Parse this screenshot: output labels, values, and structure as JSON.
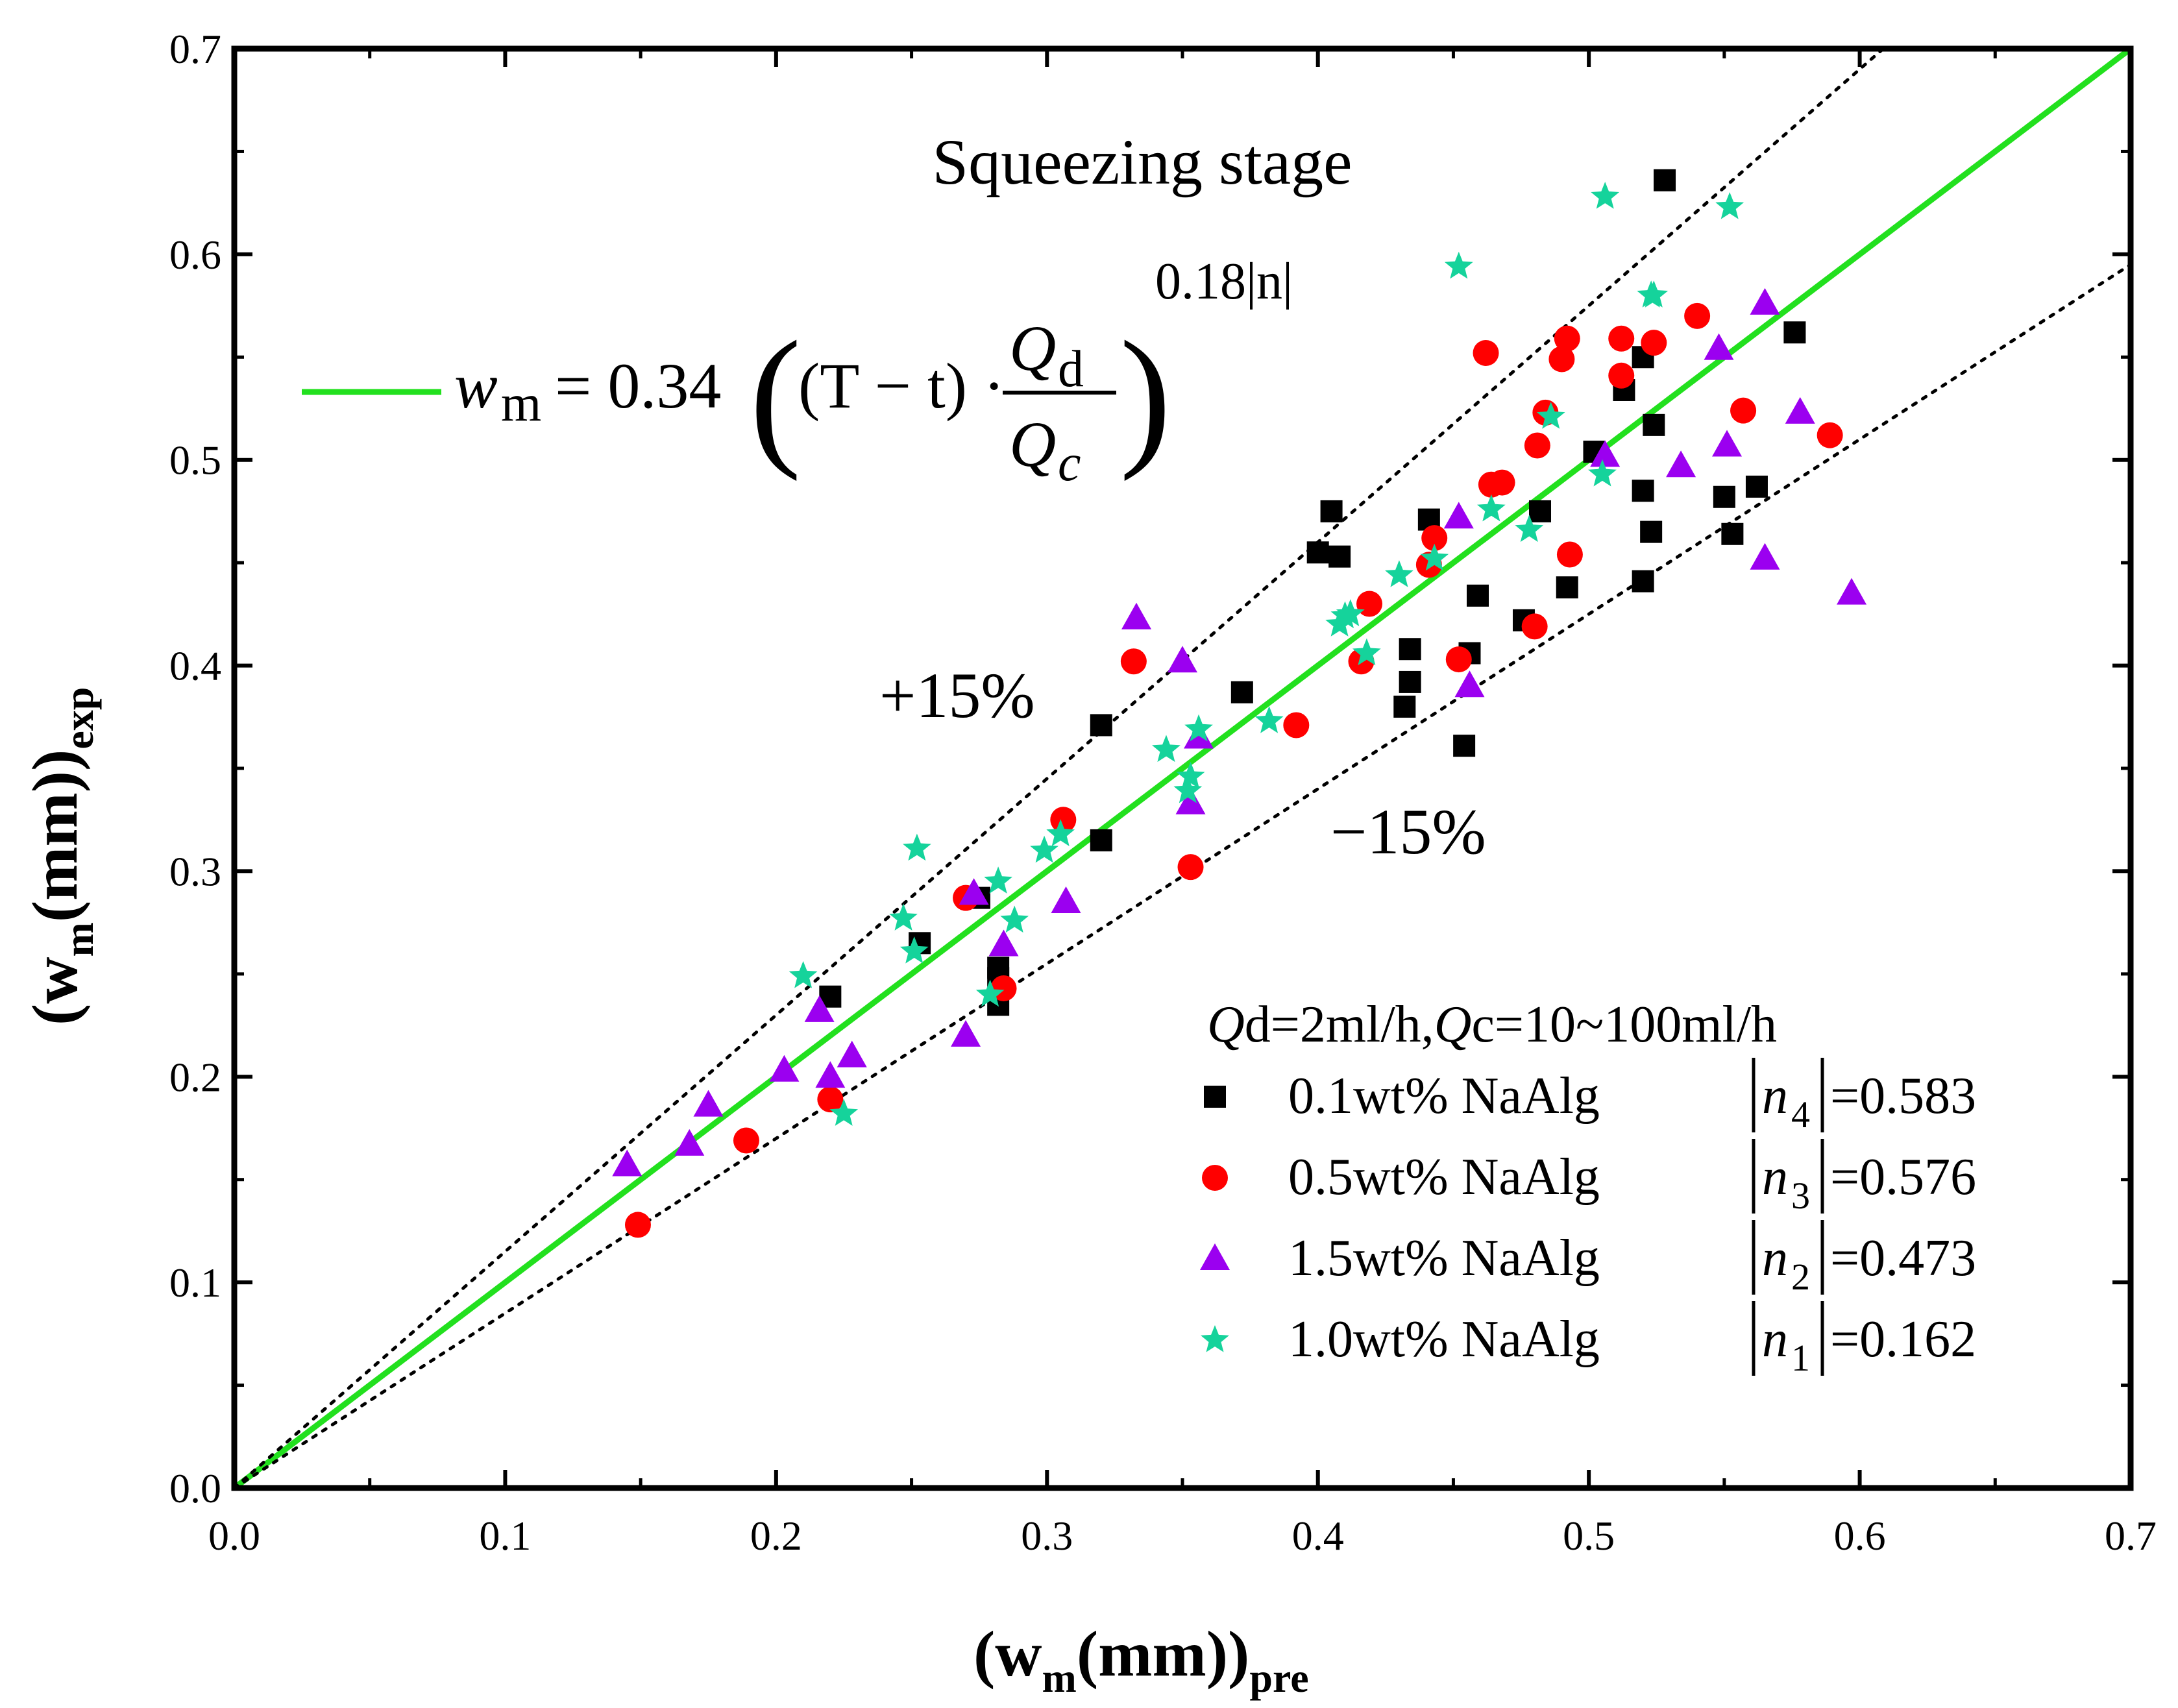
{
  "chart_data": {
    "type": "scatter",
    "title": "Squeezing  stage",
    "xlabel": {
      "main": "(w",
      "sub": "m",
      "rest": "(mm))",
      "subscript": "pre"
    },
    "ylabel": {
      "main": "(w",
      "sub": "m",
      "rest": "(mm))",
      "subscript": "exp"
    },
    "xlim": [
      0,
      0.7
    ],
    "ylim": [
      0,
      0.7
    ],
    "x_ticks": [
      "0.0",
      "0.1",
      "0.2",
      "0.3",
      "0.4",
      "0.5",
      "0.6",
      "0.7"
    ],
    "y_ticks": [
      "0.0",
      "0.1",
      "0.2",
      "0.3",
      "0.4",
      "0.5",
      "0.6",
      "0.7"
    ],
    "grid": false,
    "reference_lines": [
      {
        "label": "",
        "slope": 1.0,
        "style": "solid",
        "color": "#22e01e"
      },
      {
        "label": "+15%",
        "slope": 1.15,
        "style": "dotted",
        "color": "#000000"
      },
      {
        "label": "−15%",
        "slope": 0.85,
        "style": "dotted",
        "color": "#000000"
      }
    ],
    "formula": {
      "lhs": "w",
      "lhs_sub": "m",
      "equals": "= 0.34",
      "lparen": "(",
      "term": "(T − t) ·",
      "numerator": "Q",
      "numerator_sub": "d",
      "denominator": "Q",
      "denominator_sub": "c",
      "rparen": ")",
      "exponent": "0.18|n|"
    },
    "legend": {
      "placement": "bottom-right",
      "header": {
        "q1": "Q",
        "q1_sub": "d",
        "mid": "=2ml/h,",
        "q2": "Q",
        "q2_sub": "c",
        "end": "=10~100ml/h"
      },
      "entries": [
        {
          "label": "0.1wt% NaAlg",
          "n": "n",
          "n_sub": "4",
          "value": "=0.583"
        },
        {
          "label": "0.5wt% NaAlg",
          "n": "n",
          "n_sub": "3",
          "value": "=0.576"
        },
        {
          "label": "1.5wt% NaAlg",
          "n": "n",
          "n_sub": "2",
          "value": "=0.473"
        },
        {
          "label": "1.0wt% NaAlg",
          "n": "n",
          "n_sub": "1",
          "value": "=0.162"
        }
      ]
    },
    "series": [
      {
        "name": "0.1wt% NaAlg",
        "marker": "square",
        "color": "#000000",
        "x": [
          0.22,
          0.253,
          0.275,
          0.282,
          0.282,
          0.282,
          0.32,
          0.32,
          0.372,
          0.4,
          0.405,
          0.408,
          0.432,
          0.434,
          0.434,
          0.441,
          0.454,
          0.456,
          0.459,
          0.476,
          0.482,
          0.492,
          0.502,
          0.52,
          0.52,
          0.52,
          0.523,
          0.524,
          0.513,
          0.528,
          0.55,
          0.553,
          0.562,
          0.576
        ],
        "y": [
          0.239,
          0.265,
          0.287,
          0.253,
          0.248,
          0.235,
          0.371,
          0.315,
          0.387,
          0.455,
          0.475,
          0.453,
          0.38,
          0.392,
          0.408,
          0.471,
          0.361,
          0.406,
          0.434,
          0.422,
          0.475,
          0.438,
          0.504,
          0.441,
          0.485,
          0.55,
          0.465,
          0.517,
          0.534,
          0.636,
          0.482,
          0.464,
          0.487,
          0.562
        ]
      },
      {
        "name": "0.5wt% NaAlg",
        "marker": "circle",
        "color": "#ff0000",
        "x": [
          0.149,
          0.189,
          0.22,
          0.27,
          0.284,
          0.306,
          0.332,
          0.353,
          0.392,
          0.416,
          0.419,
          0.441,
          0.443,
          0.452,
          0.462,
          0.464,
          0.468,
          0.48,
          0.481,
          0.484,
          0.49,
          0.492,
          0.493,
          0.512,
          0.512,
          0.524,
          0.54,
          0.557,
          0.589
        ],
        "y": [
          0.128,
          0.169,
          0.189,
          0.287,
          0.243,
          0.325,
          0.402,
          0.302,
          0.371,
          0.402,
          0.43,
          0.449,
          0.462,
          0.403,
          0.552,
          0.488,
          0.489,
          0.419,
          0.507,
          0.523,
          0.549,
          0.559,
          0.454,
          0.559,
          0.541,
          0.557,
          0.57,
          0.524,
          0.512
        ]
      },
      {
        "name": "1.5wt% NaAlg",
        "marker": "triangle",
        "color": "#9b00f0",
        "x": [
          0.145,
          0.168,
          0.175,
          0.203,
          0.216,
          0.22,
          0.228,
          0.27,
          0.273,
          0.284,
          0.307,
          0.333,
          0.35,
          0.353,
          0.356,
          0.452,
          0.456,
          0.506,
          0.534,
          0.548,
          0.551,
          0.565,
          0.565,
          0.578,
          0.597
        ],
        "y": [
          0.157,
          0.167,
          0.186,
          0.203,
          0.232,
          0.2,
          0.21,
          0.22,
          0.289,
          0.264,
          0.285,
          0.423,
          0.402,
          0.333,
          0.365,
          0.472,
          0.39,
          0.502,
          0.497,
          0.554,
          0.507,
          0.452,
          0.576,
          0.523,
          0.435
        ]
      },
      {
        "name": "1.0wt% NaAlg",
        "marker": "star",
        "color": "#15d39b",
        "x": [
          0.21,
          0.225,
          0.247,
          0.251,
          0.252,
          0.279,
          0.282,
          0.288,
          0.299,
          0.305,
          0.344,
          0.352,
          0.353,
          0.356,
          0.382,
          0.408,
          0.41,
          0.412,
          0.418,
          0.43,
          0.443,
          0.452,
          0.464,
          0.478,
          0.486,
          0.505,
          0.506,
          0.523,
          0.524,
          0.552
        ],
        "y": [
          0.249,
          0.182,
          0.277,
          0.261,
          0.311,
          0.24,
          0.295,
          0.276,
          0.31,
          0.318,
          0.359,
          0.339,
          0.346,
          0.369,
          0.373,
          0.42,
          0.424,
          0.425,
          0.406,
          0.444,
          0.452,
          0.594,
          0.476,
          0.466,
          0.521,
          0.493,
          0.628,
          0.58,
          0.58,
          0.623
        ]
      }
    ]
  }
}
